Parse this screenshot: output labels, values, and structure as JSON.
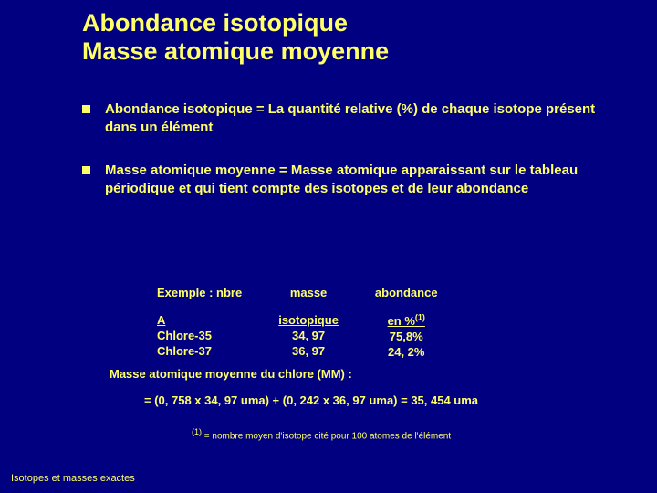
{
  "title_line1": "Abondance isotopique",
  "title_line2": "Masse atomique moyenne",
  "bullets": [
    "Abondance isotopique  =  La quantité relative (%) de chaque isotope présent dans un élément",
    "Masse atomique moyenne = Masse atomique apparaissant sur le tableau périodique et qui tient compte des isotopes et de leur abondance"
  ],
  "example": {
    "col1": {
      "head1": "Exemple : nbre",
      "head2_under": "                    A",
      "row1": "Chlore-35",
      "row2": "Chlore-37"
    },
    "col2": {
      "head1": "masse",
      "head2_under": "isotopique",
      "row1": "34, 97",
      "row2": "36, 97"
    },
    "col3": {
      "head1": "abondance",
      "head2_under": "en %",
      "sup": "(1)",
      "row1": "75,8%",
      "row2": "24, 2%"
    }
  },
  "mm_label": "Masse atomique moyenne du chlore (MM) :",
  "mm_formula": "= (0, 758  x 34, 97 uma)  +  (0, 242  x  36, 97 uma) =  35, 454 uma",
  "footnote_sup": "(1)",
  "footnote_text": " = nombre moyen d'isotope cité pour 100 atomes de l'élément",
  "footer": "Isotopes et masses exactes",
  "colors": {
    "background": "#000080",
    "text": "#ffff66"
  }
}
